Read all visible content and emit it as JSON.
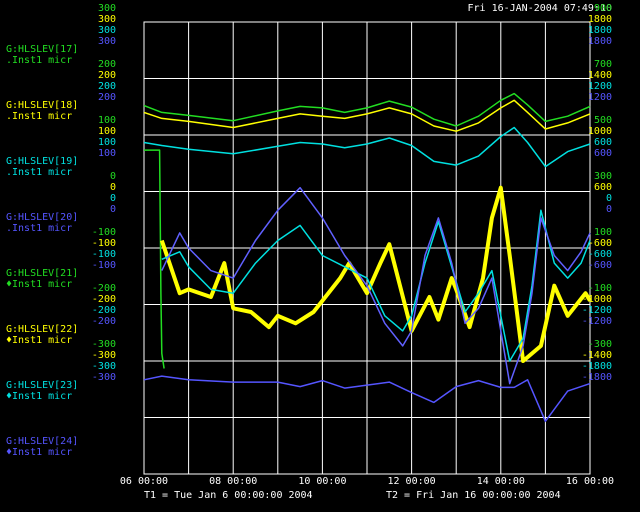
{
  "chart_data": {
    "type": "line",
    "title": "Fri 16-JAN-2004 07:49:10",
    "footer": {
      "t1": "T1 = Tue Jan  6 00:00:00 2004",
      "t2": "T2 = Fri Jan 16 00:00:00 2004"
    },
    "x_ticks": [
      "06 00:00",
      "08 00:00",
      "10 00:00",
      "12 00:00",
      "14 00:00",
      "16 00:00"
    ],
    "x_range_days": [
      6,
      16
    ],
    "grid": true,
    "left_axes": [
      {
        "color": "#22dd22",
        "ticks": [
          "300",
          "200",
          "100",
          "0",
          "-100",
          "-200",
          "-300"
        ]
      },
      {
        "color": "#ffff00",
        "ticks": [
          "300",
          "200",
          "100",
          "0",
          "-100",
          "-200",
          "-300"
        ]
      },
      {
        "color": "#00e0e0",
        "ticks": [
          "300",
          "200",
          "100",
          "0",
          "-100",
          "-200",
          "-300"
        ]
      },
      {
        "color": "#5555ff",
        "ticks": [
          "300",
          "200",
          "100",
          "0",
          "-100",
          "-200",
          "-300"
        ]
      }
    ],
    "right_axes": [
      {
        "color": "#22dd22",
        "ticks": [
          "900",
          "700",
          "500",
          "300",
          "100",
          "-100",
          "-300"
        ]
      },
      {
        "color": "#ffff00",
        "ticks": [
          "1800",
          "1400",
          "1000",
          "600",
          "-600",
          "-1000",
          "-1400"
        ]
      },
      {
        "color": "#00e0e0",
        "ticks": [
          "1800",
          "1200",
          "600",
          "0",
          "-600",
          "-1200",
          "-1800"
        ]
      },
      {
        "color": "#5555ff",
        "ticks": [
          "1800",
          "1200",
          "600",
          "0",
          "-600",
          "-1200",
          "-1800"
        ]
      }
    ],
    "series": [
      {
        "name": "G:HLSLEV[17]",
        "desc": ".Inst1  micr",
        "color": "#22dd22",
        "marker": "",
        "label_color": "#22dd22",
        "x": [
          6.0,
          6.4,
          7.0,
          8.0,
          9.0,
          9.5,
          10.0,
          10.5,
          11.0,
          11.5,
          12.0,
          12.5,
          13.0,
          13.5,
          14.0,
          14.3,
          14.6,
          15.0,
          15.5,
          16.0
        ],
        "y": [
          189,
          180,
          176,
          169,
          182,
          188,
          186,
          180,
          186,
          195,
          187,
          171,
          162,
          175,
          196,
          205,
          190,
          168,
          175,
          188
        ]
      },
      {
        "name": "G:HLSLEV[18]",
        "desc": ".Inst1  micr",
        "color": "#ffff00",
        "marker": "",
        "label_color": "#ffff00",
        "x": [
          6.0,
          6.4,
          7.0,
          8.0,
          9.0,
          9.5,
          10.0,
          10.5,
          11.0,
          11.5,
          12.0,
          12.5,
          13.0,
          13.5,
          14.0,
          14.3,
          14.6,
          15.0,
          15.5,
          16.0
        ],
        "y": [
          180,
          172,
          168,
          160,
          172,
          178,
          175,
          172,
          178,
          186,
          178,
          162,
          155,
          166,
          186,
          196,
          180,
          158,
          166,
          178
        ]
      },
      {
        "name": "G:HLSLEV[19]",
        "desc": ".Inst1  micr",
        "color": "#00e0e0",
        "marker": "",
        "label_color": "#00e0e0",
        "x": [
          6.0,
          6.4,
          7.0,
          8.0,
          9.0,
          9.5,
          10.0,
          10.5,
          11.0,
          11.5,
          12.0,
          12.5,
          13.0,
          13.5,
          14.0,
          14.3,
          14.6,
          15.0,
          15.5,
          16.0
        ],
        "y": [
          140,
          136,
          131,
          125,
          135,
          140,
          138,
          133,
          138,
          146,
          136,
          115,
          110,
          122,
          148,
          160,
          140,
          108,
          128,
          138
        ]
      },
      {
        "name": "G:HLSLEV[20]",
        "desc": ".Inst1  micr",
        "color": "#5555ff",
        "marker": "",
        "label_color": "#5555ff",
        "x": [
          6.0,
          6.4,
          7.0,
          8.0,
          9.0,
          9.5,
          10.0,
          10.5,
          11.0,
          11.5,
          12.0,
          12.5,
          13.0,
          13.5,
          14.0,
          14.3,
          14.6,
          15.0,
          15.5,
          16.0
        ],
        "y": [
          -175,
          -170,
          -175,
          -178,
          -178,
          -184,
          -176,
          -186,
          -182,
          -178,
          -192,
          -205,
          -184,
          -176,
          -185,
          -185,
          -175,
          -230,
          -190,
          -180
        ]
      },
      {
        "name": "G:HLSLEV[21]",
        "desc": "♦Inst1  micr",
        "color": "#22dd22",
        "marker": "",
        "label_color": "#22dd22",
        "x": [
          6.0,
          6.35,
          6.38,
          6.4,
          6.45
        ],
        "y": [
          130,
          130,
          -60,
          -140,
          -160
        ]
      },
      {
        "name": "G:HLSLEV[22]",
        "desc": "♦Inst1  micr",
        "color": "#ffff00",
        "marker": "",
        "label_color": "#ffff00",
        "x": [
          6.4,
          6.8,
          7.0,
          7.5,
          7.8,
          8.0,
          8.4,
          8.8,
          9.0,
          9.4,
          9.8,
          10.0,
          10.4,
          10.6,
          11.0,
          11.3,
          11.5,
          12.0,
          12.4,
          12.6,
          12.9,
          13.0,
          13.3,
          13.6,
          13.8,
          14.0,
          14.2,
          14.5,
          14.9,
          15.2,
          15.5,
          15.9,
          16.0
        ],
        "y": [
          10,
          -60,
          -55,
          -65,
          -20,
          -80,
          -85,
          -105,
          -90,
          -100,
          -85,
          -70,
          -40,
          -20,
          -60,
          -20,
          5,
          -110,
          -65,
          -95,
          -40,
          -55,
          -105,
          -40,
          40,
          80,
          -10,
          -150,
          -130,
          -50,
          -90,
          -60,
          -70
        ]
      },
      {
        "name": "G:HLSLEV[23]",
        "desc": "♦Inst1  micr",
        "color": "#00e0e0",
        "marker": "",
        "label_color": "#00e0e0",
        "x": [
          6.4,
          6.8,
          7.0,
          7.5,
          8.0,
          8.5,
          9.0,
          9.5,
          10.0,
          10.5,
          11.0,
          11.4,
          11.8,
          12.0,
          12.3,
          12.6,
          12.9,
          13.2,
          13.5,
          13.8,
          14.0,
          14.2,
          14.5,
          14.7,
          14.9,
          15.2,
          15.5,
          15.8,
          16.0
        ],
        "y": [
          -15,
          -5,
          -25,
          -55,
          -60,
          -20,
          10,
          30,
          -10,
          -25,
          -40,
          -90,
          -110,
          -90,
          -20,
          35,
          -25,
          -85,
          -60,
          -30,
          -90,
          -150,
          -120,
          -50,
          50,
          -20,
          -40,
          -20,
          10
        ]
      },
      {
        "name": "G:HLSLEV[24]",
        "desc": "♦Inst1  micr",
        "color": "#6060ff",
        "marker": "",
        "label_color": "#5555ff",
        "x": [
          6.4,
          6.8,
          7.0,
          7.5,
          8.0,
          8.5,
          9.0,
          9.5,
          10.0,
          10.5,
          11.0,
          11.4,
          11.8,
          12.0,
          12.3,
          12.6,
          12.9,
          13.2,
          13.5,
          13.8,
          14.0,
          14.2,
          14.5,
          14.7,
          14.9,
          15.2,
          15.5,
          15.8,
          16.0
        ],
        "y": [
          -30,
          20,
          0,
          -30,
          -40,
          10,
          50,
          80,
          40,
          -10,
          -50,
          -100,
          -130,
          -110,
          -10,
          40,
          -20,
          -100,
          -80,
          -40,
          -110,
          -180,
          -130,
          -60,
          40,
          -10,
          -30,
          -5,
          20
        ]
      }
    ]
  }
}
